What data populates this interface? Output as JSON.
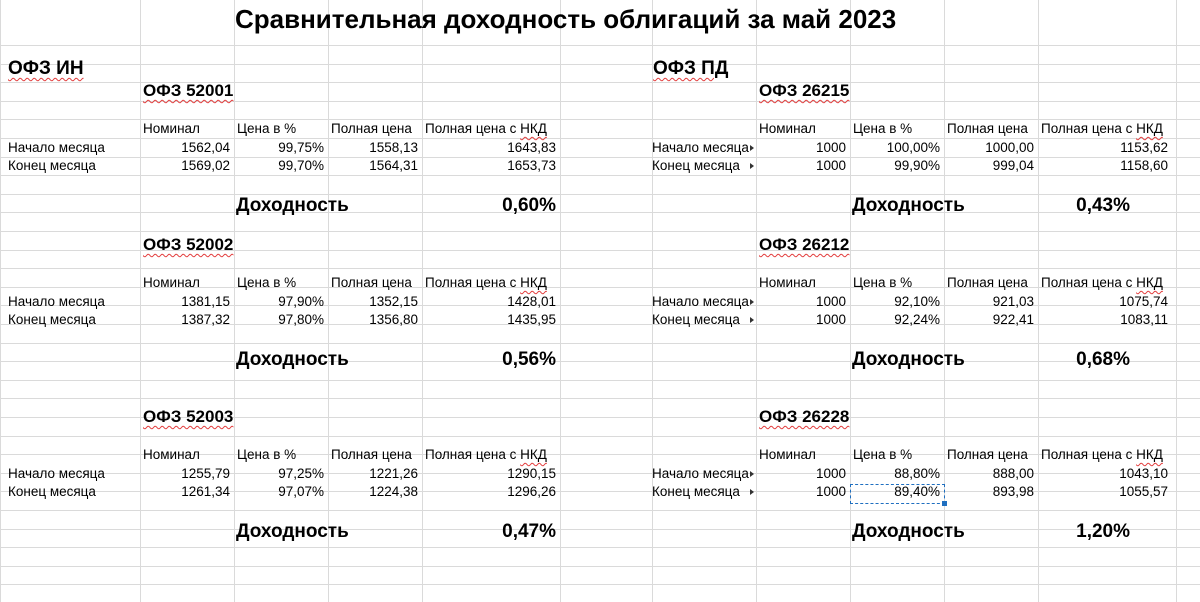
{
  "title": "Сравнительная доходность облигаций за май 2023",
  "headers": {
    "nominal": "Номинал",
    "price_pct": "Цена в %",
    "full_price": "Полная цена",
    "full_price_nkd": "Полная цена с НКД"
  },
  "row_labels": {
    "start": "Начало месяца",
    "end": "Конец месяца"
  },
  "yield_label": "Доходность",
  "left": {
    "group": "ОФЗ ИН",
    "bonds": [
      {
        "name": "ОФЗ 52001",
        "start": [
          "1562,04",
          "99,75%",
          "1558,13",
          "1643,83"
        ],
        "end": [
          "1569,02",
          "99,70%",
          "1564,31",
          "1653,73"
        ],
        "yield": "0,60%"
      },
      {
        "name": "ОФЗ 52002",
        "start": [
          "1381,15",
          "97,90%",
          "1352,15",
          "1428,01"
        ],
        "end": [
          "1387,32",
          "97,80%",
          "1356,80",
          "1435,95"
        ],
        "yield": "0,56%"
      },
      {
        "name": "ОФЗ 52003",
        "start": [
          "1255,79",
          "97,25%",
          "1221,26",
          "1290,15"
        ],
        "end": [
          "1261,34",
          "97,07%",
          "1224,38",
          "1296,26"
        ],
        "yield": "0,47%"
      }
    ]
  },
  "right": {
    "group": "ОФЗ ПД",
    "bonds": [
      {
        "name": "ОФЗ 26215",
        "start": [
          "1000",
          "100,00%",
          "1000,00",
          "1153,62"
        ],
        "end": [
          "1000",
          "99,90%",
          "999,04",
          "1158,60"
        ],
        "yield": "0,43%"
      },
      {
        "name": "ОФЗ 26212",
        "start": [
          "1000",
          "92,10%",
          "921,03",
          "1075,74"
        ],
        "end": [
          "1000",
          "92,24%",
          "922,41",
          "1083,11"
        ],
        "yield": "0,68%"
      },
      {
        "name": "ОФЗ 26228",
        "start": [
          "1000",
          "88,80%",
          "888,00",
          "1043,10"
        ],
        "end": [
          "1000",
          "89,40%",
          "893,98",
          "1055,57"
        ],
        "yield": "1,20%"
      }
    ]
  },
  "selection": {
    "section": "right",
    "bond_index": 2,
    "row": "end",
    "column": "price_pct"
  },
  "colors": {
    "grid": "#dadada",
    "spellcheck": "#e23b3b",
    "selection": "#1f6fc0"
  }
}
